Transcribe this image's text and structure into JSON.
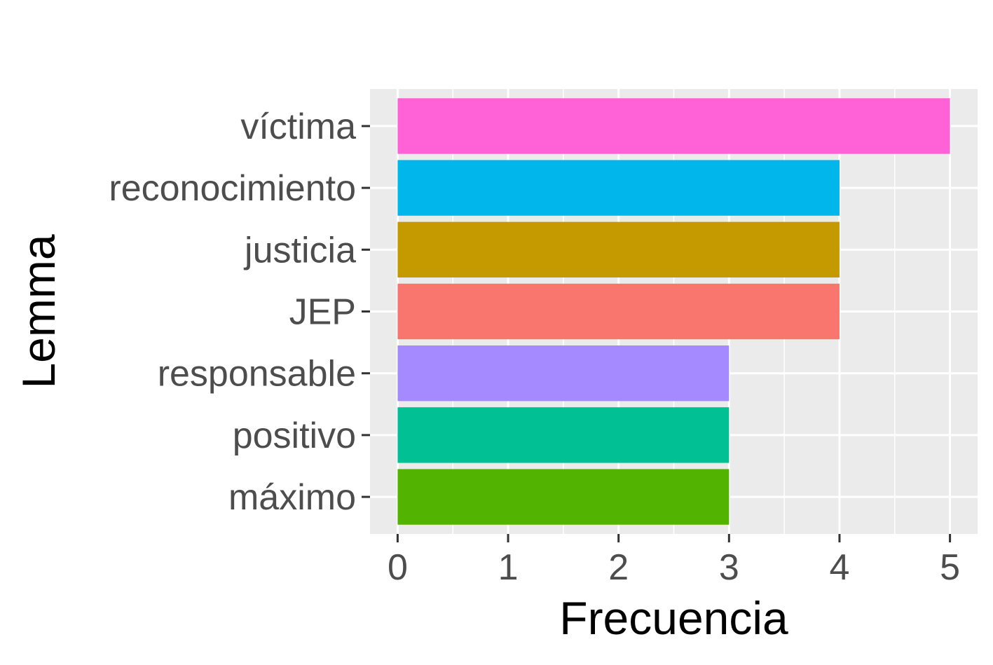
{
  "chart_data": {
    "type": "bar",
    "orientation": "horizontal",
    "xlabel": "Frecuencia",
    "ylabel": "Lemma",
    "categories": [
      "víctima",
      "reconocimiento",
      "justicia",
      "JEP",
      "responsable",
      "positivo",
      "máximo"
    ],
    "values": [
      5,
      4,
      4,
      4,
      3,
      3,
      3
    ],
    "colors": [
      "#FF61D7",
      "#00B6EB",
      "#C49A00",
      "#F8766D",
      "#A58AFF",
      "#00C094",
      "#53B400"
    ],
    "xlim": [
      -0.25,
      5.25
    ],
    "xticks": [
      0,
      1,
      2,
      3,
      4,
      5
    ],
    "grid": true,
    "legend": false,
    "panel_background": "#EBEBEB"
  }
}
